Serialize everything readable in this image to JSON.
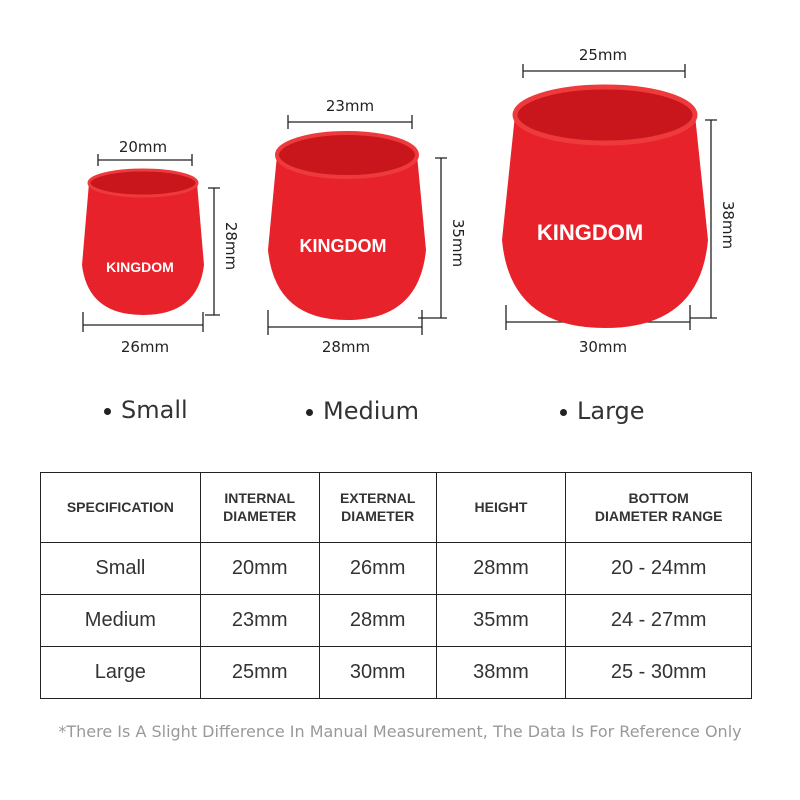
{
  "brand": "KINGDOM",
  "colors": {
    "cup": "#e8222a",
    "cup_inner": "#c8161c",
    "text": "#222222"
  },
  "cups": [
    {
      "name": "Small",
      "top": "20mm",
      "height": "28mm",
      "bottom": "26mm"
    },
    {
      "name": "Medium",
      "top": "23mm",
      "height": "35mm",
      "bottom": "28mm"
    },
    {
      "name": "Large",
      "top": "25mm",
      "height": "38mm",
      "bottom": "30mm"
    }
  ],
  "table": {
    "headers": [
      "SPECIFICATION",
      "INTERNAL DIAMETER",
      "EXTERNAL DIAMETER",
      "HEIGHT",
      "BOTTOM DIAMETER RANGE"
    ],
    "rows": [
      [
        "Small",
        "20mm",
        "26mm",
        "28mm",
        "20 - 24mm"
      ],
      [
        "Medium",
        "23mm",
        "28mm",
        "35mm",
        "24 - 27mm"
      ],
      [
        "Large",
        "25mm",
        "30mm",
        "38mm",
        "25 - 30mm"
      ]
    ]
  },
  "note": "*There Is A Slight Difference In Manual Measurement, The Data Is For Reference Only"
}
